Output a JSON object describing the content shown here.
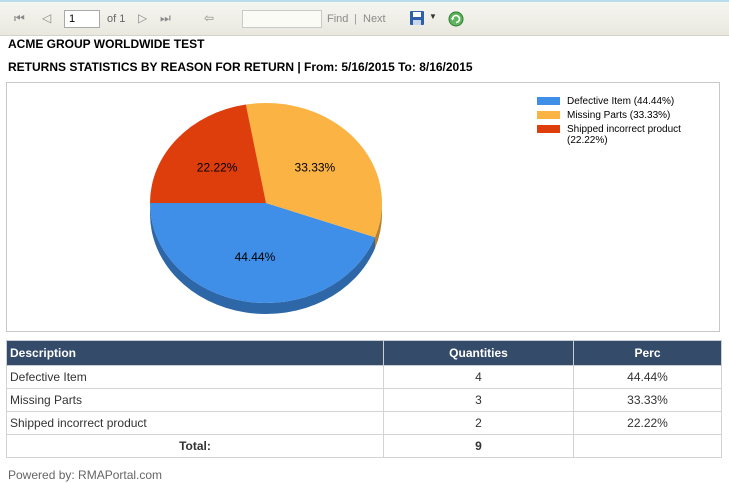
{
  "toolbar": {
    "first_icon": "first-page-icon",
    "prev_icon": "previous-page-icon",
    "page_value": "1",
    "of_label": "of 1",
    "next_icon": "next-page-icon",
    "last_icon": "last-page-icon",
    "back_icon": "back-icon",
    "find_value": "",
    "find_label": "Find",
    "separator": "|",
    "next_label": "Next",
    "export_icon": "save-export-icon",
    "refresh_icon": "refresh-icon"
  },
  "report": {
    "title": "ACME GROUP WORLDWIDE TEST",
    "subtitle": "RETURNS STATISTICS BY REASON FOR RETURN | From: 5/16/2015 To: 8/16/2015"
  },
  "chart_data": {
    "type": "pie",
    "slices": [
      {
        "label": "Defective Item",
        "value": 44.44,
        "display": "44.44%",
        "legend": "Defective Item (44.44%)",
        "color": "#3f8fe8"
      },
      {
        "label": "Missing Parts",
        "value": 33.33,
        "display": "33.33%",
        "legend": "Missing Parts (33.33%)",
        "color": "#fbb343"
      },
      {
        "label": "Shipped incorrect product",
        "value": 22.22,
        "display": "22.22%",
        "legend": "Shipped incorrect product (22.22%)",
        "color": "#de3d0c"
      }
    ],
    "legend_position": "top-right"
  },
  "table": {
    "headers": [
      "Description",
      "Quantities",
      "Perc"
    ],
    "rows": [
      [
        "Defective Item",
        "4",
        "44.44%"
      ],
      [
        "Missing Parts",
        "3",
        "33.33%"
      ],
      [
        "Shipped incorrect product",
        "2",
        "22.22%"
      ]
    ],
    "total_label": "Total:",
    "total_value": "9"
  },
  "footer": "Powered by: RMAPortal.com"
}
